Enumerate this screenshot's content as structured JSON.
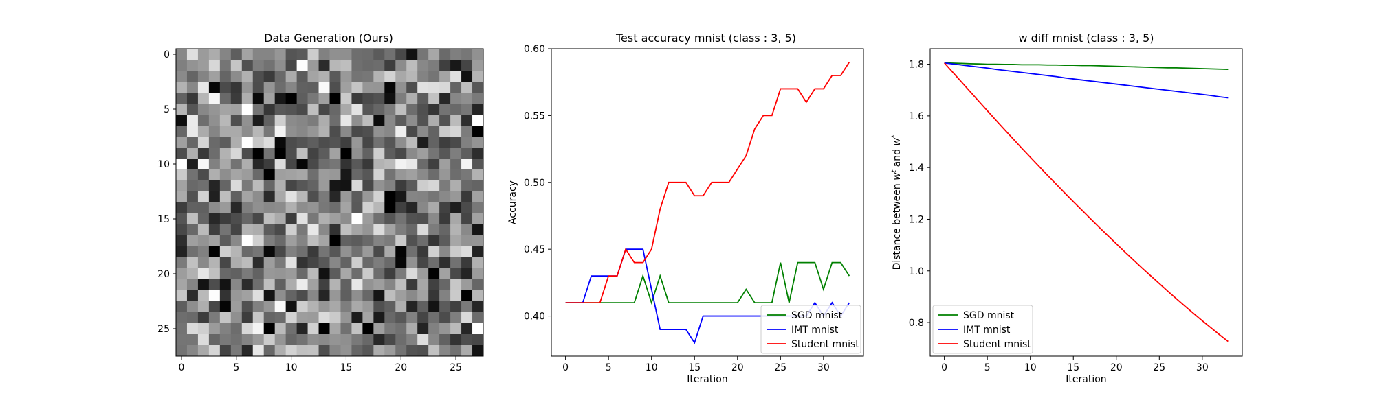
{
  "chart_data": [
    {
      "type": "heatmap",
      "title": "Data Generation (Ours)",
      "colormap": "gray",
      "rows": 28,
      "cols": 28,
      "xlim": [
        -0.5,
        27.5
      ],
      "ylim": [
        27.5,
        -0.5
      ],
      "xticks": [
        0,
        5,
        10,
        15,
        20,
        25
      ],
      "yticks": [
        0,
        5,
        10,
        15,
        20,
        25
      ],
      "xlabel": "",
      "ylabel": ""
    },
    {
      "type": "line",
      "title": "Test accuracy mnist (class : 3, 5)",
      "xlabel": "Iteration",
      "ylabel": "Accuracy",
      "xlim": [
        -1.65,
        34.65
      ],
      "ylim": [
        0.37,
        0.6
      ],
      "xticks": [
        0,
        5,
        10,
        15,
        20,
        25,
        30
      ],
      "yticks": [
        0.4,
        0.45,
        0.5,
        0.55,
        0.6
      ],
      "ytick_labels": [
        "0.40",
        "0.45",
        "0.50",
        "0.55",
        "0.60"
      ],
      "legend_position": "lower-right",
      "x": [
        0,
        1,
        2,
        3,
        4,
        5,
        6,
        7,
        8,
        9,
        10,
        11,
        12,
        13,
        14,
        15,
        16,
        17,
        18,
        19,
        20,
        21,
        22,
        23,
        24,
        25,
        26,
        27,
        28,
        29,
        30,
        31,
        32,
        33
      ],
      "series": [
        {
          "name": "SGD mnist",
          "color": "#008000",
          "values": [
            0.41,
            0.41,
            0.41,
            0.41,
            0.41,
            0.41,
            0.41,
            0.41,
            0.41,
            0.43,
            0.41,
            0.43,
            0.41,
            0.41,
            0.41,
            0.41,
            0.41,
            0.41,
            0.41,
            0.41,
            0.41,
            0.42,
            0.41,
            0.41,
            0.41,
            0.44,
            0.41,
            0.44,
            0.44,
            0.44,
            0.42,
            0.44,
            0.44,
            0.43
          ]
        },
        {
          "name": "IMT mnist",
          "color": "#0000ff",
          "values": [
            0.41,
            0.41,
            0.41,
            0.43,
            0.43,
            0.43,
            0.43,
            0.45,
            0.45,
            0.45,
            0.42,
            0.39,
            0.39,
            0.39,
            0.39,
            0.38,
            0.4,
            0.4,
            0.4,
            0.4,
            0.4,
            0.4,
            0.4,
            0.4,
            0.4,
            0.4,
            0.4,
            0.4,
            0.4,
            0.41,
            0.4,
            0.41,
            0.4,
            0.41
          ]
        },
        {
          "name": "Student mnist",
          "color": "#ff0000",
          "values": [
            0.41,
            0.41,
            0.41,
            0.41,
            0.41,
            0.43,
            0.43,
            0.45,
            0.44,
            0.44,
            0.45,
            0.48,
            0.5,
            0.5,
            0.5,
            0.49,
            0.49,
            0.5,
            0.5,
            0.5,
            0.51,
            0.52,
            0.54,
            0.55,
            0.55,
            0.57,
            0.57,
            0.57,
            0.56,
            0.57,
            0.57,
            0.58,
            0.58,
            0.59
          ]
        }
      ]
    },
    {
      "type": "line",
      "title": "w diff mnist (class : 3, 5)",
      "xlabel": "Iteration",
      "ylabel": "Distance between w^t and w^*",
      "xlim": [
        -1.65,
        34.65
      ],
      "ylim": [
        0.67,
        1.86
      ],
      "xticks": [
        0,
        5,
        10,
        15,
        20,
        25,
        30
      ],
      "yticks": [
        0.8,
        1.0,
        1.2,
        1.4,
        1.6,
        1.8
      ],
      "ytick_labels": [
        "0.8",
        "1.0",
        "1.2",
        "1.4",
        "1.6",
        "1.8"
      ],
      "legend_position": "lower-left",
      "x": [
        0,
        1,
        2,
        3,
        4,
        5,
        6,
        7,
        8,
        9,
        10,
        11,
        12,
        13,
        14,
        15,
        16,
        17,
        18,
        19,
        20,
        21,
        22,
        23,
        24,
        25,
        26,
        27,
        28,
        29,
        30,
        31,
        32,
        33
      ],
      "series": [
        {
          "name": "SGD mnist",
          "color": "#008000",
          "values": [
            1.805,
            1.804,
            1.803,
            1.802,
            1.801,
            1.8,
            1.8,
            1.799,
            1.799,
            1.798,
            1.798,
            1.798,
            1.797,
            1.797,
            1.796,
            1.796,
            1.795,
            1.795,
            1.794,
            1.793,
            1.792,
            1.791,
            1.79,
            1.789,
            1.788,
            1.787,
            1.786,
            1.786,
            1.785,
            1.784,
            1.783,
            1.782,
            1.781,
            1.78
          ]
        },
        {
          "name": "IMT mnist",
          "color": "#0000ff",
          "values": [
            1.805,
            1.801,
            1.797,
            1.793,
            1.789,
            1.785,
            1.78,
            1.776,
            1.772,
            1.768,
            1.764,
            1.76,
            1.756,
            1.752,
            1.747,
            1.743,
            1.739,
            1.735,
            1.731,
            1.727,
            1.723,
            1.719,
            1.715,
            1.711,
            1.707,
            1.703,
            1.699,
            1.695,
            1.691,
            1.687,
            1.683,
            1.679,
            1.674,
            1.67
          ]
        },
        {
          "name": "Student mnist",
          "color": "#ff0000",
          "values": [
            1.805,
            1.768,
            1.731,
            1.694,
            1.657,
            1.62,
            1.583,
            1.547,
            1.511,
            1.475,
            1.44,
            1.405,
            1.37,
            1.336,
            1.302,
            1.268,
            1.235,
            1.202,
            1.169,
            1.137,
            1.105,
            1.073,
            1.042,
            1.011,
            0.981,
            0.951,
            0.921,
            0.892,
            0.863,
            0.835,
            0.807,
            0.78,
            0.753,
            0.727
          ]
        }
      ]
    }
  ]
}
